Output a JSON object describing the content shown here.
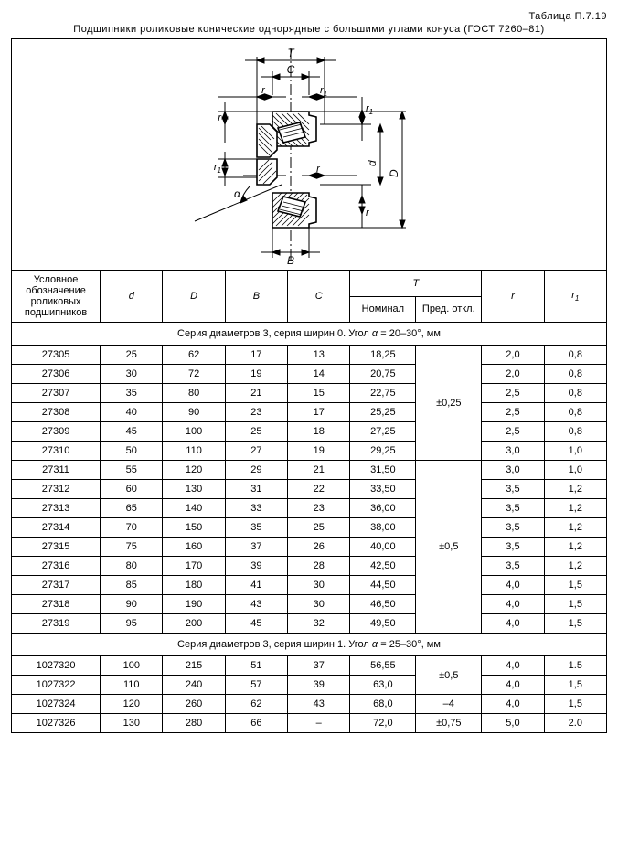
{
  "table_number": "Таблица П.7.19",
  "title": "Подшипники роликовые конические однорядные с большими углами конуса (ГОСТ 7260–81)",
  "diagram": {
    "labels": {
      "T": "T",
      "C": "C",
      "B": "B",
      "D": "D",
      "d": "d",
      "r": "r",
      "r1": "r",
      "alpha": "α"
    },
    "stroke": "#000",
    "fill": "#fff"
  },
  "headers": {
    "designation": "Условное обозначение роликовых подшипников",
    "d": "d",
    "D": "D",
    "B": "B",
    "C": "C",
    "T": "T",
    "T_nom": "Номинал",
    "T_dev": "Пред. откл.",
    "r": "r",
    "r1_pre": "r",
    "r1_sub": "1"
  },
  "section1": {
    "pre": "Серия диаметров 3, серия ширин 0. Угол ",
    "alpha": "α",
    "post": " = 20–30°, мм"
  },
  "section2": {
    "pre": "Серия диаметров 3, серия ширин 1. Угол ",
    "alpha": "α",
    "post": " = 25–30°, мм"
  },
  "group1a": {
    "dev": "±0,25",
    "rows": [
      {
        "des": "27305",
        "d": "25",
        "D": "62",
        "B": "17",
        "C": "13",
        "Tn": "18,25",
        "r": "2,0",
        "r1": "0,8"
      },
      {
        "des": "27306",
        "d": "30",
        "D": "72",
        "B": "19",
        "C": "14",
        "Tn": "20,75",
        "r": "2,0",
        "r1": "0,8"
      },
      {
        "des": "27307",
        "d": "35",
        "D": "80",
        "B": "21",
        "C": "15",
        "Tn": "22,75",
        "r": "2,5",
        "r1": "0,8"
      },
      {
        "des": "27308",
        "d": "40",
        "D": "90",
        "B": "23",
        "C": "17",
        "Tn": "25,25",
        "r": "2,5",
        "r1": "0,8"
      },
      {
        "des": "27309",
        "d": "45",
        "D": "100",
        "B": "25",
        "C": "18",
        "Tn": "27,25",
        "r": "2,5",
        "r1": "0,8"
      },
      {
        "des": "27310",
        "d": "50",
        "D": "110",
        "B": "27",
        "C": "19",
        "Tn": "29,25",
        "r": "3,0",
        "r1": "1,0"
      }
    ]
  },
  "group1b": {
    "dev": "±0,5",
    "rows": [
      {
        "des": "27311",
        "d": "55",
        "D": "120",
        "B": "29",
        "C": "21",
        "Tn": "31,50",
        "r": "3,0",
        "r1": "1,0"
      },
      {
        "des": "27312",
        "d": "60",
        "D": "130",
        "B": "31",
        "C": "22",
        "Tn": "33,50",
        "r": "3,5",
        "r1": "1,2"
      },
      {
        "des": "27313",
        "d": "65",
        "D": "140",
        "B": "33",
        "C": "23",
        "Tn": "36,00",
        "r": "3,5",
        "r1": "1,2"
      },
      {
        "des": "27314",
        "d": "70",
        "D": "150",
        "B": "35",
        "C": "25",
        "Tn": "38,00",
        "r": "3,5",
        "r1": "1,2"
      },
      {
        "des": "27315",
        "d": "75",
        "D": "160",
        "B": "37",
        "C": "26",
        "Tn": "40,00",
        "r": "3,5",
        "r1": "1,2"
      },
      {
        "des": "27316",
        "d": "80",
        "D": "170",
        "B": "39",
        "C": "28",
        "Tn": "42,50",
        "r": "3,5",
        "r1": "1,2"
      },
      {
        "des": "27317",
        "d": "85",
        "D": "180",
        "B": "41",
        "C": "30",
        "Tn": "44,50",
        "r": "4,0",
        "r1": "1,5"
      },
      {
        "des": "27318",
        "d": "90",
        "D": "190",
        "B": "43",
        "C": "30",
        "Tn": "46,50",
        "r": "4,0",
        "r1": "1,5"
      },
      {
        "des": "27319",
        "d": "95",
        "D": "200",
        "B": "45",
        "C": "32",
        "Tn": "49,50",
        "r": "4,0",
        "r1": "1,5"
      }
    ]
  },
  "group2a": {
    "dev": "±0,5",
    "rows": [
      {
        "des": "1027320",
        "d": "100",
        "D": "215",
        "B": "51",
        "C": "37",
        "Tn": "56,55",
        "r": "4,0",
        "r1": "1.5"
      },
      {
        "des": "1027322",
        "d": "110",
        "D": "240",
        "B": "57",
        "C": "39",
        "Tn": "63,0",
        "r": "4,0",
        "r1": "1,5"
      }
    ]
  },
  "group2b": {
    "dev": "–4",
    "rows": [
      {
        "des": "1027324",
        "d": "120",
        "D": "260",
        "B": "62",
        "C": "43",
        "Tn": "68,0",
        "r": "4,0",
        "r1": "1,5"
      }
    ]
  },
  "group2c": {
    "dev": "±0,75",
    "rows": [
      {
        "des": "1027326",
        "d": "130",
        "D": "280",
        "B": "66",
        "C": "–",
        "Tn": "72,0",
        "r": "5,0",
        "r1": "2.0"
      }
    ]
  }
}
